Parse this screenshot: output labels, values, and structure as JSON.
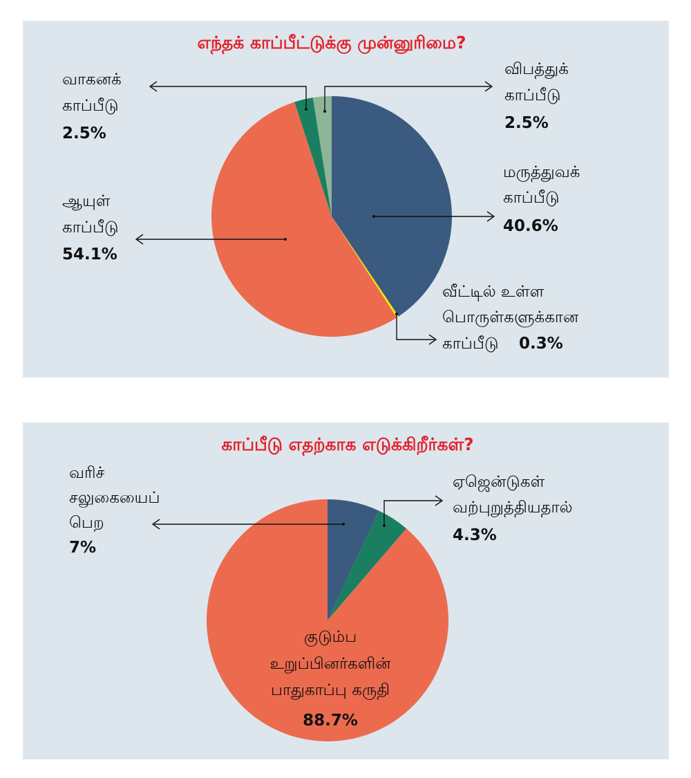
{
  "chart_data": [
    {
      "type": "pie",
      "title": "எந்தக் காப்பீட்டுக்கு முன்னுரிமை?",
      "start_angle_deg": 0,
      "direction": "clockwise",
      "slices": [
        {
          "label_lines": [
            "மருத்துவக்",
            "காப்பீடு"
          ],
          "value": 40.6,
          "value_text": "40.6%",
          "color": "#3b5a80"
        },
        {
          "label_lines": [
            "வீட்டில் உள்ள",
            "பொருள்களுக்கான",
            "காப்பீடு"
          ],
          "value": 0.3,
          "value_text": "0.3%",
          "color": "#f2e600"
        },
        {
          "label_lines": [
            "ஆயுள்",
            "காப்பீடு"
          ],
          "value": 54.1,
          "value_text": "54.1%",
          "color": "#ec6b4f"
        },
        {
          "label_lines": [
            "வாகனக்",
            "காப்பீடு"
          ],
          "value": 2.5,
          "value_text": "2.5%",
          "color": "#1a7f60"
        },
        {
          "label_lines": [
            "விபத்துக்",
            "காப்பீடு"
          ],
          "value": 2.5,
          "value_text": "2.5%",
          "color": "#8db597"
        }
      ]
    },
    {
      "type": "pie",
      "title": "காப்பீடு எதற்காக எடுக்கிறீர்கள்?",
      "start_angle_deg": 0,
      "direction": "clockwise",
      "slices": [
        {
          "label_lines": [
            "வரிச்",
            "சலுகையைப்",
            "பெற"
          ],
          "value": 7,
          "value_text": "7%",
          "color": "#3b5a80"
        },
        {
          "label_lines": [
            "ஏஜென்டுகள்",
            "வற்புறுத்தியதால்"
          ],
          "value": 4.3,
          "value_text": "4.3%",
          "color": "#1a7f60"
        },
        {
          "label_lines": [
            "குடும்ப",
            "உறுப்பினர்களின்",
            "பாதுகாப்பு கருதி"
          ],
          "value": 88.7,
          "value_text": "88.7%",
          "color": "#ec6b4f"
        }
      ]
    }
  ]
}
